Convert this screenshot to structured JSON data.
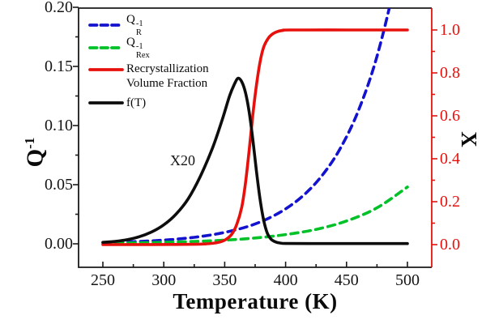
{
  "figure": {
    "background": "#ffffff",
    "frame_color": "#1a1a1a",
    "axes": {
      "bottom": {
        "title": "Temperature (K)",
        "ticks": [
          250,
          300,
          350,
          400,
          450,
          500
        ],
        "tick_labels": [
          "250",
          "300",
          "350",
          "400",
          "450",
          "500"
        ],
        "minor_ticks": [
          275,
          325,
          375,
          425,
          475
        ],
        "color": "#1a1a1a"
      },
      "left": {
        "title_base": "Q",
        "title_sup": "-1",
        "ticks": [
          0.2,
          0.15,
          0.1,
          0.05,
          0.0
        ],
        "tick_labels": [
          "0.20",
          "0.15",
          "0.10",
          "0.05",
          "0.00"
        ],
        "minor_ticks": [
          0.175,
          0.125,
          0.075,
          0.025
        ],
        "color": "#1a1a1a"
      },
      "right": {
        "title": "X",
        "ticks": [
          1.0,
          0.8,
          0.6,
          0.4,
          0.2,
          0.0
        ],
        "tick_labels": [
          "1.0",
          "0.8",
          "0.6",
          "0.4",
          "0.2",
          "0.0"
        ],
        "minor_ticks": [
          0.9,
          0.7,
          0.5,
          0.3,
          0.1
        ],
        "color": "#e8100c"
      }
    },
    "annotation": {
      "text": "X20"
    }
  },
  "legend": {
    "items": [
      {
        "name": "QR-inverse",
        "color": "#1212cf",
        "dash": true,
        "base": "Q",
        "sub": "R",
        "sup": "-1"
      },
      {
        "name": "QRex-inverse",
        "color": "#00c228",
        "dash": true,
        "base": "Q",
        "sub": "Rex",
        "sup": "-1"
      },
      {
        "name": "recrystallization-volume-fraction",
        "color": "#e8100c",
        "dash": false,
        "line1": "Recrystallization",
        "line2": "Volume Fraction"
      },
      {
        "name": "f-of-T",
        "color": "#0d0d0d",
        "dash": false,
        "label": "f(T)"
      }
    ]
  },
  "chart_data": {
    "type": "line",
    "title": "",
    "xlabel": "Temperature (K)",
    "ylabel_left": "Q^-1",
    "ylabel_right": "X",
    "xlim": [
      230,
      520
    ],
    "ylim_left": [
      -0.02,
      0.2
    ],
    "ylim_right": [
      -0.106,
      1.1
    ],
    "grid": false,
    "legend_position": "top-left-inside",
    "annotations": [
      {
        "text": "X20",
        "meaning": "f(T) curve magnified 20x",
        "near_temperature": 330
      }
    ],
    "series": [
      {
        "name": "Q_R^-1",
        "axis": "left",
        "color": "#1212cf",
        "style": "dashed",
        "points": [
          [
            250,
            0.001
          ],
          [
            265,
            0.0014
          ],
          [
            280,
            0.002
          ],
          [
            295,
            0.0028
          ],
          [
            310,
            0.0039
          ],
          [
            325,
            0.0055
          ],
          [
            340,
            0.0077
          ],
          [
            355,
            0.0108
          ],
          [
            370,
            0.015
          ],
          [
            385,
            0.0211
          ],
          [
            400,
            0.0295
          ],
          [
            415,
            0.0413
          ],
          [
            430,
            0.0578
          ],
          [
            445,
            0.0809
          ],
          [
            460,
            0.1132
          ],
          [
            475,
            0.1585
          ],
          [
            490,
            0.2218
          ],
          [
            500,
            0.278
          ]
        ]
      },
      {
        "name": "Q_Rex^-1",
        "axis": "left",
        "color": "#00c228",
        "style": "dashed",
        "points": [
          [
            250,
            0.0005
          ],
          [
            275,
            0.0008
          ],
          [
            300,
            0.0013
          ],
          [
            325,
            0.002
          ],
          [
            350,
            0.0031
          ],
          [
            375,
            0.0049
          ],
          [
            400,
            0.0078
          ],
          [
            425,
            0.0122
          ],
          [
            450,
            0.0193
          ],
          [
            475,
            0.0304
          ],
          [
            500,
            0.048
          ]
        ]
      },
      {
        "name": "Recrystallization Volume Fraction",
        "axis": "right",
        "color": "#e8100c",
        "style": "solid",
        "points": [
          [
            250,
            0.0
          ],
          [
            290,
            0.0002
          ],
          [
            310,
            0.0006
          ],
          [
            325,
            0.0015
          ],
          [
            333,
            0.003
          ],
          [
            340,
            0.006
          ],
          [
            346,
            0.012
          ],
          [
            351,
            0.024
          ],
          [
            356,
            0.05
          ],
          [
            360,
            0.095
          ],
          [
            364,
            0.175
          ],
          [
            367,
            0.285
          ],
          [
            370,
            0.435
          ],
          [
            373,
            0.6
          ],
          [
            376,
            0.74
          ],
          [
            379,
            0.85
          ],
          [
            382,
            0.92
          ],
          [
            386,
            0.963
          ],
          [
            390,
            0.984
          ],
          [
            394,
            0.994
          ],
          [
            398,
            0.998
          ],
          [
            403,
            1.0
          ],
          [
            450,
            1.0
          ],
          [
            500,
            1.0
          ]
        ]
      },
      {
        "name": "f(T) (x20)",
        "axis": "left",
        "color": "#0d0d0d",
        "style": "solid",
        "points": [
          [
            250,
            0.0012
          ],
          [
            260,
            0.002
          ],
          [
            270,
            0.0035
          ],
          [
            280,
            0.006
          ],
          [
            290,
            0.01
          ],
          [
            300,
            0.016
          ],
          [
            310,
            0.025
          ],
          [
            320,
            0.038
          ],
          [
            330,
            0.057
          ],
          [
            340,
            0.081
          ],
          [
            348,
            0.105
          ],
          [
            354,
            0.125
          ],
          [
            358,
            0.135
          ],
          [
            361,
            0.14
          ],
          [
            364,
            0.137
          ],
          [
            367,
            0.128
          ],
          [
            370,
            0.112
          ],
          [
            373,
            0.089
          ],
          [
            376,
            0.062
          ],
          [
            379,
            0.038
          ],
          [
            382,
            0.02
          ],
          [
            385,
            0.009
          ],
          [
            388,
            0.004
          ],
          [
            392,
            0.0015
          ],
          [
            396,
            0.0006
          ],
          [
            400,
            0.0003
          ],
          [
            420,
            0.0002
          ],
          [
            450,
            0.0002
          ],
          [
            500,
            0.0002
          ]
        ]
      }
    ]
  }
}
